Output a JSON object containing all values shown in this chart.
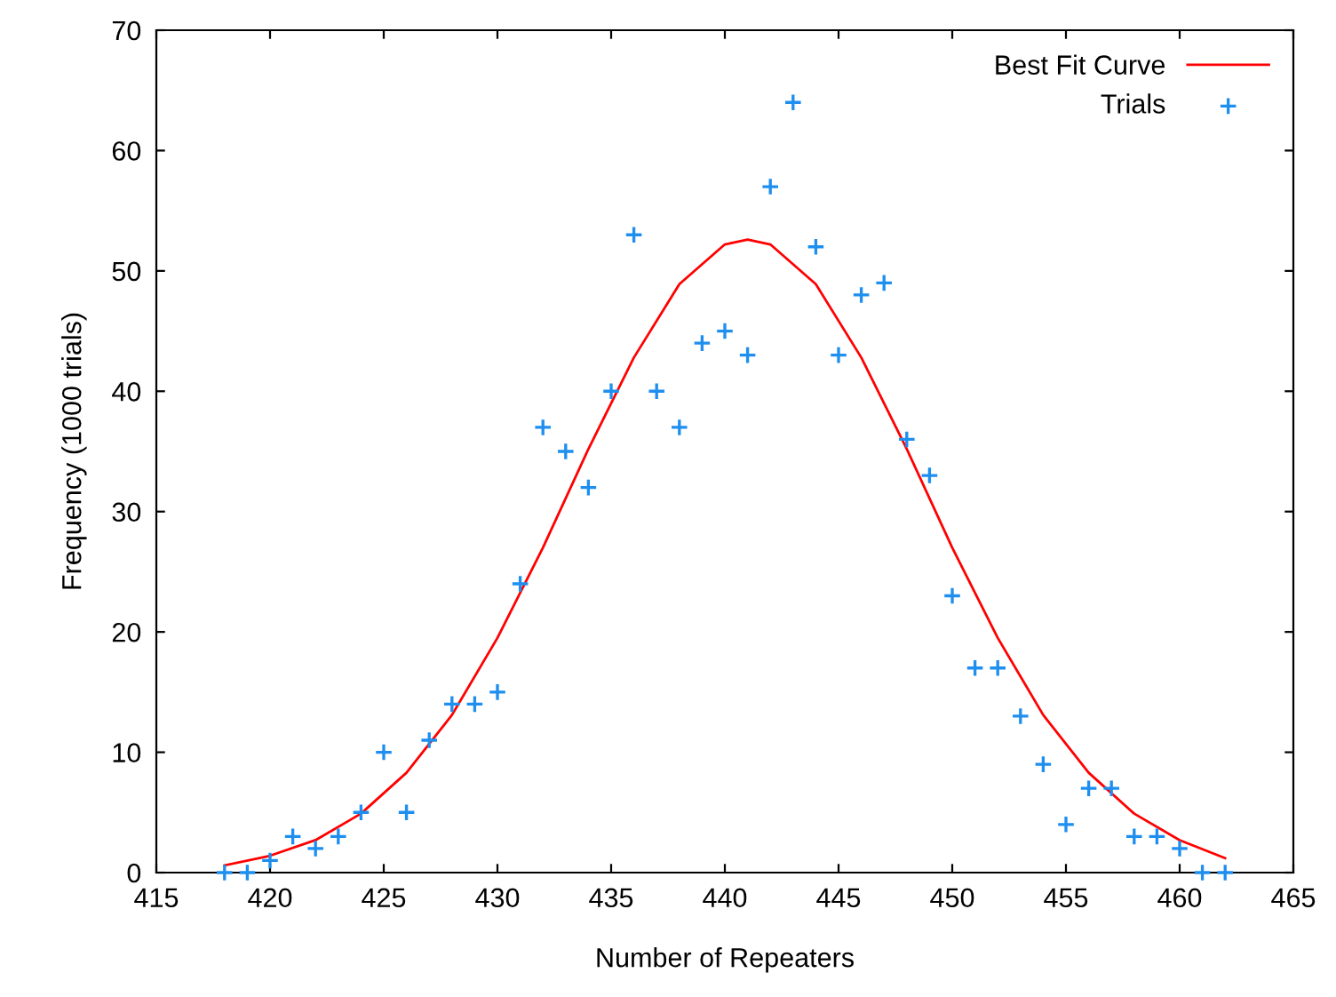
{
  "chart_data": {
    "type": "scatter",
    "xlabel": "Number of Repeaters",
    "ylabel": "Frequency (1000 trials)",
    "xlim": [
      415,
      465
    ],
    "ylim": [
      0,
      70
    ],
    "xticks": [
      415,
      420,
      425,
      430,
      435,
      440,
      445,
      450,
      455,
      460,
      465
    ],
    "yticks": [
      0,
      10,
      20,
      30,
      40,
      50,
      60,
      70
    ],
    "grid": false,
    "legend": "top right",
    "series": [
      {
        "name": "Best Fit Curve",
        "type": "line",
        "color": "#ff0000",
        "marker": "none",
        "x": [
          418,
          420,
          422,
          424,
          426,
          428,
          430,
          432,
          434,
          436,
          438,
          440,
          441,
          442,
          444,
          446,
          448,
          450,
          452,
          454,
          456,
          458,
          460,
          462
        ],
        "values": [
          0.6,
          1.4,
          2.7,
          4.9,
          8.3,
          13.1,
          19.5,
          27.0,
          35.2,
          42.8,
          48.9,
          52.2,
          52.6,
          52.2,
          48.9,
          42.8,
          35.2,
          27.0,
          19.5,
          13.1,
          8.3,
          4.9,
          2.7,
          1.2
        ]
      },
      {
        "name": "Trials",
        "color": "#1e8fef",
        "marker": "cross",
        "x": [
          418,
          419,
          420,
          421,
          422,
          423,
          424,
          425,
          426,
          427,
          428,
          429,
          430,
          431,
          432,
          433,
          434,
          435,
          436,
          437,
          438,
          439,
          440,
          441,
          442,
          443,
          444,
          445,
          446,
          447,
          448,
          449,
          450,
          451,
          452,
          453,
          454,
          455,
          456,
          457,
          458,
          459,
          460,
          461,
          462
        ],
        "values": [
          0,
          0,
          1,
          3,
          2,
          3,
          5,
          10,
          5,
          11,
          14,
          14,
          15,
          24,
          37,
          35,
          32,
          40,
          53,
          40,
          37,
          44,
          45,
          43,
          57,
          64,
          52,
          43,
          48,
          49,
          36,
          33,
          23,
          17,
          17,
          13,
          9,
          4,
          7,
          7,
          3,
          3,
          2,
          0,
          0
        ]
      }
    ]
  }
}
